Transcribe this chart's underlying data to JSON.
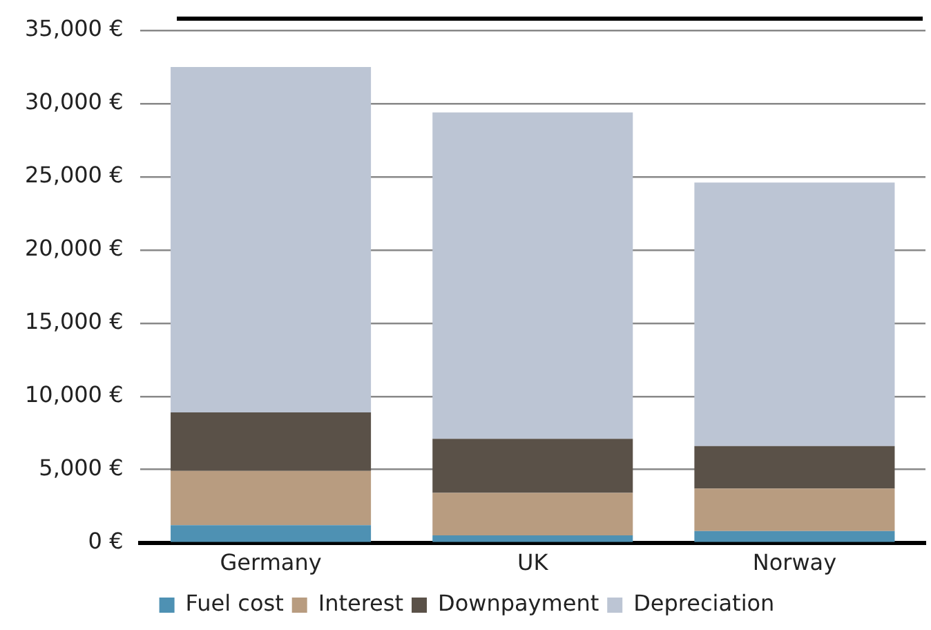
{
  "chart_data": {
    "type": "bar",
    "stacked": true,
    "categories": [
      "Germany",
      "UK",
      "Norway"
    ],
    "series": [
      {
        "name": "Fuel cost",
        "color": "#4e91b3",
        "values": [
          1200,
          500,
          800
        ]
      },
      {
        "name": "Interest",
        "color": "#b89c80",
        "values": [
          3700,
          2900,
          2900
        ]
      },
      {
        "name": "Downpayment",
        "color": "#5a5148",
        "values": [
          4000,
          3700,
          2900
        ]
      },
      {
        "name": "Depreciation",
        "color": "#bcc5d4",
        "values": [
          23600,
          22300,
          18000
        ]
      }
    ],
    "ylim": [
      0,
      35000
    ],
    "yticks": [
      {
        "value": 0,
        "label": "0 €"
      },
      {
        "value": 5000,
        "label": "5,000 €"
      },
      {
        "value": 10000,
        "label": "10,000 €"
      },
      {
        "value": 15000,
        "label": "15,000 €"
      },
      {
        "value": 20000,
        "label": "20,000 €"
      },
      {
        "value": 25000,
        "label": "25,000 €"
      },
      {
        "value": 30000,
        "label": "30,000 €"
      },
      {
        "value": 35000,
        "label": "35,000 €"
      }
    ],
    "grid": "y",
    "legend": "bottom"
  }
}
